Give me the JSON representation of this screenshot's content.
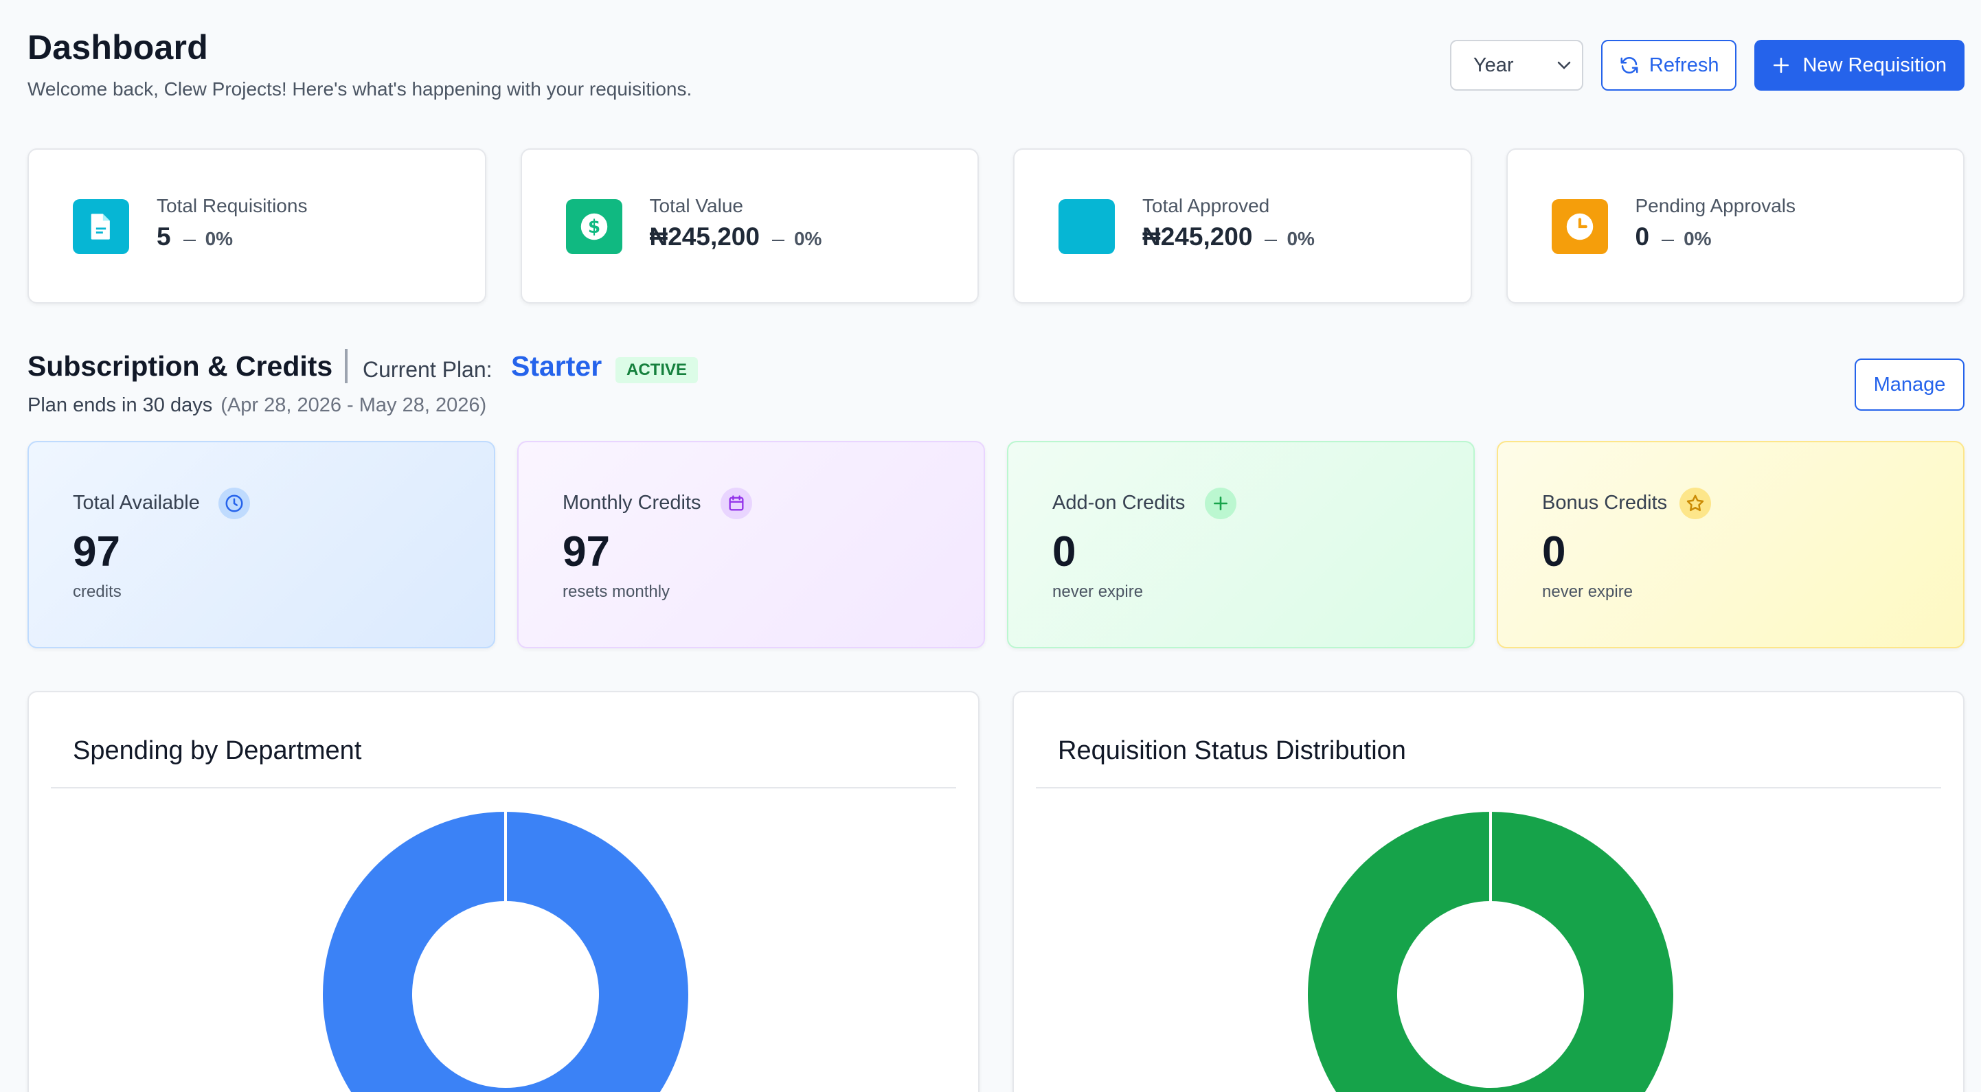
{
  "header": {
    "title": "Dashboard",
    "subtitle": "Welcome back, Clew Projects! Here's what's happening with your requisitions.",
    "period_select": "Year",
    "refresh_label": "Refresh",
    "new_requisition_label": "New Requisition"
  },
  "stats": [
    {
      "label": "Total Requisitions",
      "value": "5",
      "change": "0%",
      "icon": "document-icon",
      "color": "#06b6d4"
    },
    {
      "label": "Total Value",
      "value": "₦245,200",
      "change": "0%",
      "icon": "dollar-icon",
      "color": "#10b981"
    },
    {
      "label": "Total Approved",
      "value": "₦245,200",
      "change": "0%",
      "icon": "approved-icon",
      "color": "#06b6d4"
    },
    {
      "label": "Pending Approvals",
      "value": "0",
      "change": "0%",
      "icon": "clock-icon",
      "color": "#f59e0b"
    }
  ],
  "subscription": {
    "title": "Subscription & Credits",
    "plan_label": "Current Plan:",
    "plan_name": "Starter",
    "plan_status": "ACTIVE",
    "plan_ends": "Plan ends in 30 days",
    "plan_dates": "(Apr 28, 2026 - May 28, 2026)",
    "manage_label": "Manage"
  },
  "credits": [
    {
      "label": "Total Available",
      "value": "97",
      "note": "credits",
      "icon": "clock-icon"
    },
    {
      "label": "Monthly Credits",
      "value": "97",
      "note": "resets monthly",
      "icon": "calendar-icon"
    },
    {
      "label": "Add-on Credits",
      "value": "0",
      "note": "never expire",
      "icon": "plus-icon"
    },
    {
      "label": "Bonus Credits",
      "value": "0",
      "note": "never expire",
      "icon": "star-icon"
    }
  ],
  "charts": {
    "spending": {
      "title": "Spending by Department"
    },
    "status": {
      "title": "Requisition Status Distribution"
    }
  },
  "chart_data": [
    {
      "type": "pie",
      "title": "Spending by Department",
      "slices": [
        {
          "value": 100,
          "color": "#3b82f6"
        }
      ]
    },
    {
      "type": "pie",
      "title": "Requisition Status Distribution",
      "slices": [
        {
          "value": 100,
          "color": "#16a34a"
        }
      ]
    }
  ]
}
